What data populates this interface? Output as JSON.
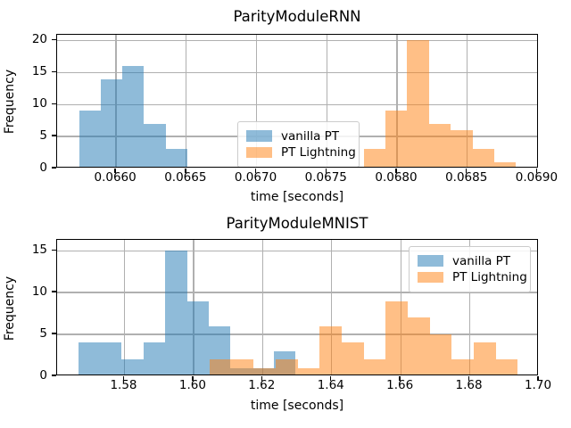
{
  "colors": {
    "blue_series": "rgba(31,119,180,0.5)",
    "orange_series": "rgba(255,127,14,0.5)",
    "blue_flat": "#8fbbd9",
    "orange_flat": "#ffbf86",
    "overlap": "#c79d73",
    "grid": "#b0b0b0",
    "axis": "#000000",
    "legend_border": "#cccccc"
  },
  "chart_data": [
    {
      "type": "bar",
      "subtype": "histogram",
      "title": "ParityModuleRNN",
      "xlabel": "time [seconds]",
      "ylabel": "Frequency",
      "xlim": [
        0.06558,
        0.06901
      ],
      "ylim": [
        0,
        20.9
      ],
      "grid": true,
      "xticks": [
        {
          "value": 0.066,
          "label": "0.0660"
        },
        {
          "value": 0.0665,
          "label": "0.0665"
        },
        {
          "value": 0.067,
          "label": "0.0670"
        },
        {
          "value": 0.0675,
          "label": "0.0675"
        },
        {
          "value": 0.068,
          "label": "0.0680"
        },
        {
          "value": 0.0685,
          "label": "0.0685"
        },
        {
          "value": 0.069,
          "label": "0.0690"
        }
      ],
      "yticks": [
        {
          "value": 0,
          "label": "0"
        },
        {
          "value": 5,
          "label": "5"
        },
        {
          "value": 10,
          "label": "10"
        },
        {
          "value": 15,
          "label": "15"
        },
        {
          "value": 20,
          "label": "20"
        }
      ],
      "legend": {
        "location": "center",
        "items": [
          {
            "label": "vanilla PT",
            "fill": "rgba(31,119,180,0.5)"
          },
          {
            "label": "PT Lightning",
            "fill": "rgba(255,127,14,0.5)"
          }
        ]
      },
      "series": [
        {
          "name": "vanilla PT",
          "fill": "rgba(31,119,180,0.5)",
          "bin_start": 0.065736,
          "bin_width": 0.000154,
          "counts": [
            9,
            14,
            16,
            7,
            3
          ]
        },
        {
          "name": "PT Lightning",
          "fill": "rgba(255,127,14,0.5)",
          "bin_start": 0.067763,
          "bin_width": 0.000155,
          "counts": [
            3,
            9,
            20,
            7,
            6,
            3,
            1
          ]
        }
      ]
    },
    {
      "type": "bar",
      "subtype": "histogram",
      "title": "ParityModuleMNIST",
      "xlabel": "time [seconds]",
      "ylabel": "Frequency",
      "xlim": [
        1.5605,
        1.7
      ],
      "ylim": [
        0,
        16.3
      ],
      "grid": true,
      "xticks": [
        {
          "value": 1.58,
          "label": "1.58"
        },
        {
          "value": 1.6,
          "label": "1.60"
        },
        {
          "value": 1.62,
          "label": "1.62"
        },
        {
          "value": 1.64,
          "label": "1.64"
        },
        {
          "value": 1.66,
          "label": "1.66"
        },
        {
          "value": 1.68,
          "label": "1.68"
        },
        {
          "value": 1.7,
          "label": "1.70"
        }
      ],
      "yticks": [
        {
          "value": 0,
          "label": "0"
        },
        {
          "value": 5,
          "label": "5"
        },
        {
          "value": 10,
          "label": "10"
        },
        {
          "value": 15,
          "label": "15"
        }
      ],
      "legend": {
        "location": "upper right",
        "items": [
          {
            "label": "vanilla PT",
            "fill": "rgba(31,119,180,0.5)"
          },
          {
            "label": "PT Lightning",
            "fill": "rgba(255,127,14,0.5)"
          }
        ]
      },
      "series": [
        {
          "name": "vanilla PT",
          "fill": "rgba(31,119,180,0.5)",
          "bin_start": 1.5666,
          "bin_width": 0.0063,
          "counts": [
            4,
            4,
            2,
            4,
            15,
            9,
            6,
            1,
            1,
            3
          ]
        },
        {
          "name": "PT Lightning",
          "fill": "rgba(255,127,14,0.5)",
          "bin_start": 1.6047,
          "bin_width": 0.00637,
          "counts": [
            2,
            2,
            1,
            2,
            1,
            6,
            4,
            2,
            9,
            7,
            5,
            2,
            4,
            2
          ]
        }
      ]
    }
  ]
}
